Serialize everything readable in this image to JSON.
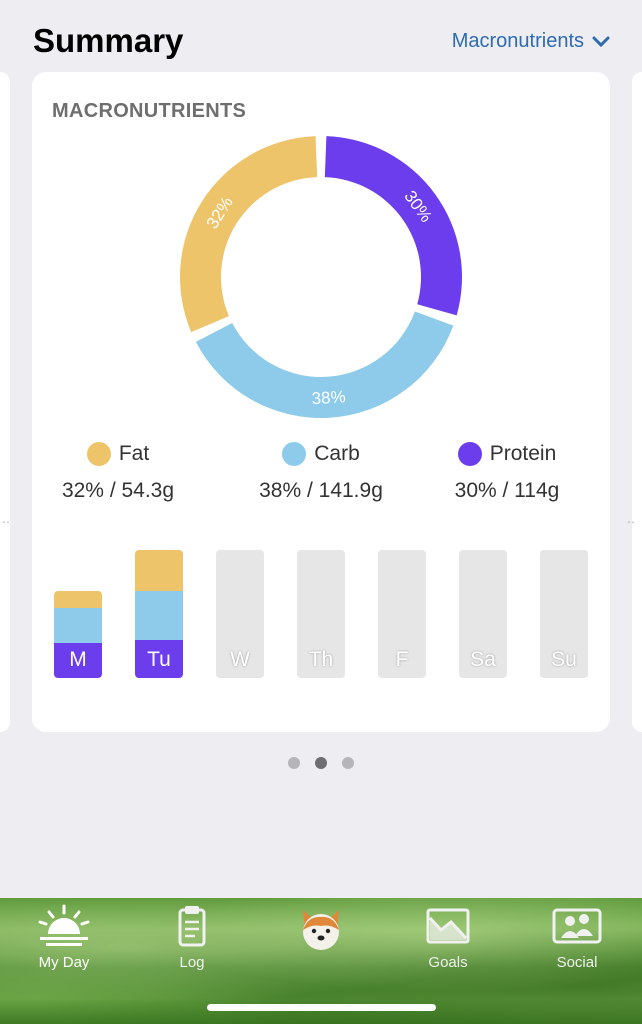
{
  "header": {
    "title": "Summary",
    "selector_label": "Macronutrients"
  },
  "card": {
    "title": "MACRONUTRIENTS"
  },
  "chart_data": {
    "type": "pie",
    "title": "MACRONUTRIENTS",
    "labels": [
      "Fat",
      "Carb",
      "Protein"
    ],
    "values": [
      32,
      38,
      30
    ],
    "slice_labels": [
      "32%",
      "38%",
      "30%"
    ],
    "colors": [
      "#edc46a",
      "#8ecbea",
      "#6b3ded"
    ]
  },
  "legend": [
    {
      "name": "Fat",
      "value": "32% / 54.3g",
      "color": "#edc46a"
    },
    {
      "name": "Carb",
      "value": "38% / 141.9g",
      "color": "#8ecbea"
    },
    {
      "name": "Protein",
      "value": "30% / 114g",
      "color": "#6b3ded"
    }
  ],
  "weekly": {
    "days": [
      {
        "label": "M",
        "fraction": 0.68,
        "fat": 0.15,
        "carb": 0.3,
        "protein": 0.3
      },
      {
        "label": "Tu",
        "fraction": 1.0,
        "fat": 0.32,
        "carb": 0.38,
        "protein": 0.3
      },
      {
        "label": "W",
        "fraction": 0
      },
      {
        "label": "Th",
        "fraction": 0
      },
      {
        "label": "F",
        "fraction": 0
      },
      {
        "label": "Sa",
        "fraction": 0
      },
      {
        "label": "Su",
        "fraction": 0
      }
    ]
  },
  "pagination": {
    "count": 3,
    "active": 1
  },
  "tabs": [
    {
      "label": "My Day",
      "icon": "sunrise-icon",
      "active": true
    },
    {
      "label": "Log",
      "icon": "clipboard-icon",
      "active": false
    },
    {
      "label": "",
      "icon": "dog-avatar-icon",
      "active": false
    },
    {
      "label": "Goals",
      "icon": "goals-chart-icon",
      "active": false
    },
    {
      "label": "Social",
      "icon": "friends-icon",
      "active": false
    }
  ]
}
